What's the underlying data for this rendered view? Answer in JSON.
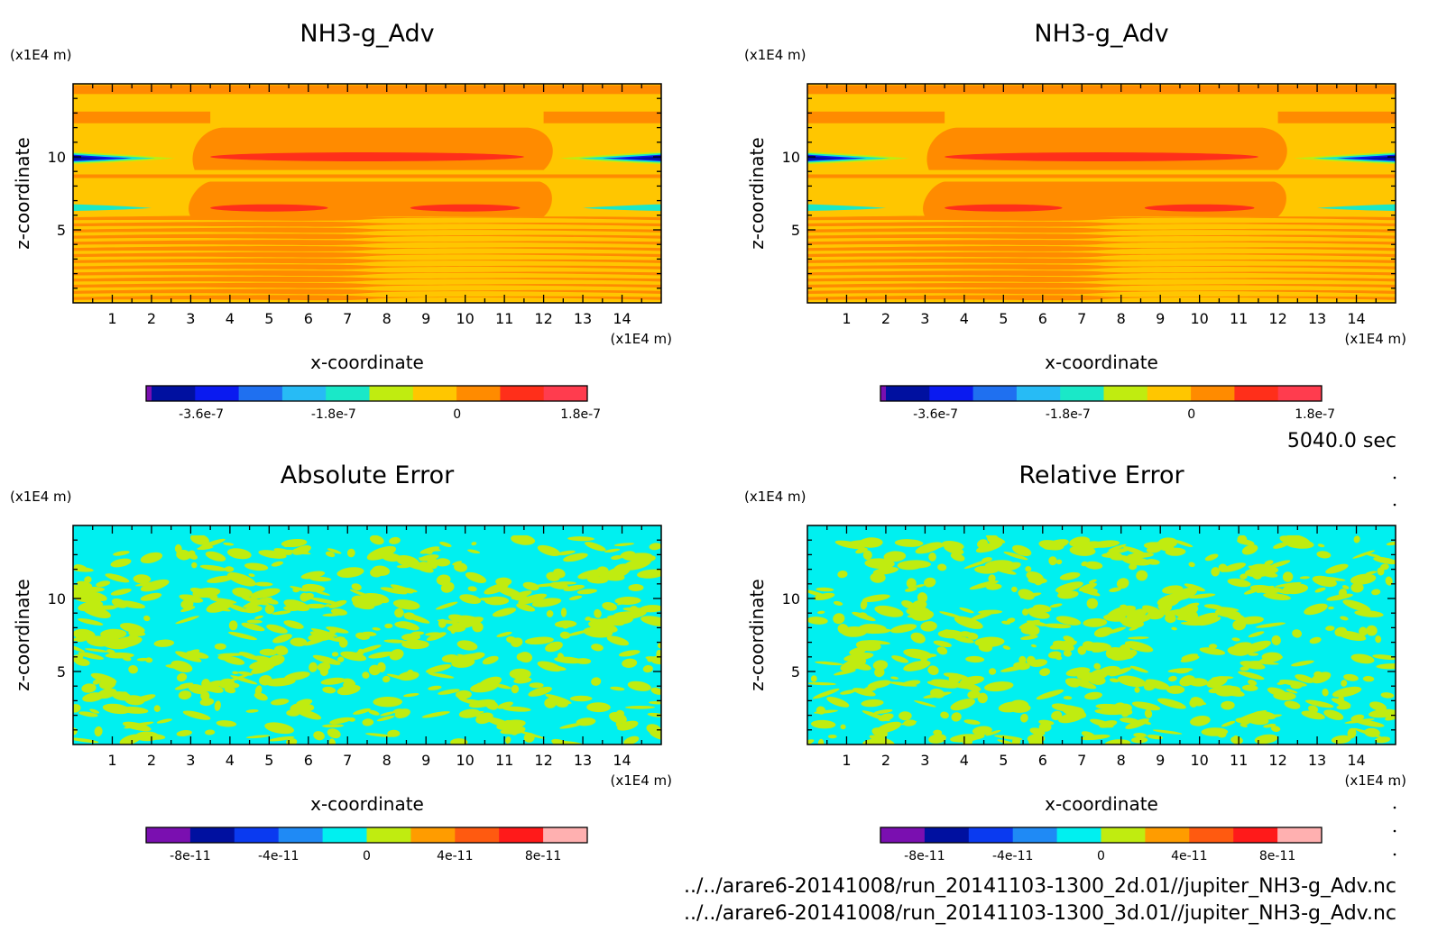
{
  "time_label": "5040.0 sec",
  "footer": {
    "line1": "../../arare6-20141008/run_20141103-1300_2d.01//jupiter_NH3-g_Adv.nc",
    "line2": "../../arare6-20141008/run_20141103-1300_3d.01//jupiter_NH3-g_Adv.nc"
  },
  "chart_data": [
    {
      "type": "heatmap",
      "title": "NH3-g_Adv",
      "xlabel": "x-coordinate",
      "ylabel": "z-coordinate",
      "x_unit": "(x1E4 m)",
      "y_unit": "(x1E4 m)",
      "xlim": [
        0,
        15
      ],
      "ylim": [
        0,
        15
      ],
      "x_ticks": [
        "1",
        "2",
        "3",
        "4",
        "5",
        "6",
        "7",
        "8",
        "9",
        "10",
        "11",
        "12",
        "13",
        "14"
      ],
      "y_ticks": [
        "5",
        "10"
      ],
      "colorbar": {
        "colors": [
          "#7a0fb0",
          "#0010a0",
          "#0a1af0",
          "#1f70f0",
          "#27bbf5",
          "#1ae8c8",
          "#c0ec10",
          "#ffc600",
          "#ff8b00",
          "#ff2f1a",
          "#ff3c4e"
        ],
        "tick_labels": [
          "-3.6e-7",
          "-1.8e-7",
          "0",
          "1.8e-7"
        ]
      },
      "field": "advection"
    },
    {
      "type": "heatmap",
      "title": "NH3-g_Adv",
      "xlabel": "x-coordinate",
      "ylabel": "z-coordinate",
      "x_unit": "(x1E4 m)",
      "y_unit": "(x1E4 m)",
      "xlim": [
        0,
        15
      ],
      "ylim": [
        0,
        15
      ],
      "x_ticks": [
        "1",
        "2",
        "3",
        "4",
        "5",
        "6",
        "7",
        "8",
        "9",
        "10",
        "11",
        "12",
        "13",
        "14"
      ],
      "y_ticks": [
        "5",
        "10"
      ],
      "colorbar": {
        "colors": [
          "#7a0fb0",
          "#0010a0",
          "#0a1af0",
          "#1f70f0",
          "#27bbf5",
          "#1ae8c8",
          "#c0ec10",
          "#ffc600",
          "#ff8b00",
          "#ff2f1a",
          "#ff3c4e"
        ],
        "tick_labels": [
          "-3.6e-7",
          "-1.8e-7",
          "0",
          "1.8e-7"
        ]
      },
      "field": "advection"
    },
    {
      "type": "heatmap",
      "title": "Absolute Error",
      "xlabel": "x-coordinate",
      "ylabel": "z-coordinate",
      "x_unit": "(x1E4 m)",
      "y_unit": "(x1E4 m)",
      "xlim": [
        0,
        15
      ],
      "ylim": [
        0,
        15
      ],
      "x_ticks": [
        "1",
        "2",
        "3",
        "4",
        "5",
        "6",
        "7",
        "8",
        "9",
        "10",
        "11",
        "12",
        "13",
        "14"
      ],
      "y_ticks": [
        "5",
        "10"
      ],
      "colorbar": {
        "colors": [
          "#7a0fb0",
          "#0010a0",
          "#0a3af0",
          "#1f8af5",
          "#00f0f0",
          "#c0ec10",
          "#ff9c00",
          "#ff5a10",
          "#ff1a1a",
          "#ffb0b0"
        ],
        "tick_labels": [
          "-8e-11",
          "-4e-11",
          "0",
          "4e-11",
          "8e-11"
        ]
      },
      "field": "error",
      "seed": 11
    },
    {
      "type": "heatmap",
      "title": "Relative Error",
      "xlabel": "x-coordinate",
      "ylabel": "z-coordinate",
      "x_unit": "(x1E4 m)",
      "y_unit": "(x1E4 m)",
      "xlim": [
        0,
        15
      ],
      "ylim": [
        0,
        15
      ],
      "x_ticks": [
        "1",
        "2",
        "3",
        "4",
        "5",
        "6",
        "7",
        "8",
        "9",
        "10",
        "11",
        "12",
        "13",
        "14"
      ],
      "y_ticks": [
        "5",
        "10"
      ],
      "colorbar": {
        "colors": [
          "#7a0fb0",
          "#0010a0",
          "#0a3af0",
          "#1f8af5",
          "#00f0f0",
          "#c0ec10",
          "#ff9c00",
          "#ff5a10",
          "#ff1a1a",
          "#ffb0b0"
        ],
        "tick_labels": [
          "-8e-11",
          "-4e-11",
          "0",
          "4e-11",
          "8e-11"
        ]
      },
      "field": "error",
      "seed": 29
    }
  ]
}
